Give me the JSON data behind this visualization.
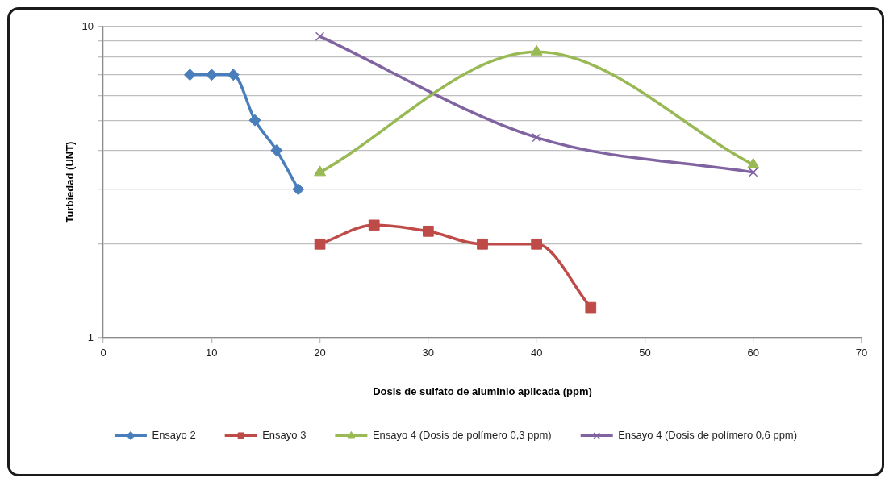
{
  "chart_data": {
    "type": "line",
    "xlabel": "Dosis de sulfato de aluminio aplicada (ppm)",
    "ylabel": "Turbiedad (UNT)",
    "xlim": [
      0,
      70
    ],
    "xticks": [
      0,
      10,
      20,
      30,
      40,
      50,
      60,
      70
    ],
    "ylim": [
      1,
      10
    ],
    "yticks": [
      1,
      {
        "value": 2,
        "label": null
      },
      {
        "value": 3,
        "label": null
      },
      {
        "value": 4,
        "label": null
      },
      {
        "value": 5,
        "label": null
      },
      {
        "value": 6,
        "label": null
      },
      {
        "value": 7,
        "label": null
      },
      {
        "value": 8,
        "label": null
      },
      {
        "value": 9,
        "label": null
      },
      10
    ],
    "log": "y",
    "grid": "y",
    "legend": "bottom",
    "line_style": "solid",
    "series": [
      {
        "name": "Ensayo 2",
        "color": "#4a7ebb",
        "marker": "diamond",
        "x": [
          8,
          10,
          12,
          14,
          16,
          18
        ],
        "values": [
          7,
          7,
          7,
          5,
          4,
          3
        ]
      },
      {
        "name": "Ensayo 3",
        "color": "#be4b48",
        "marker": "square",
        "x": [
          20,
          25,
          30,
          35,
          40,
          45
        ],
        "values": [
          2,
          2.3,
          2.2,
          2,
          2,
          1.25
        ]
      },
      {
        "name": "Ensayo 4 (Dosis de polímero 0,3 ppm)",
        "color": "#98b954",
        "marker": "triangle",
        "x": [
          20,
          40,
          60
        ],
        "values": [
          3.4,
          8.3,
          3.6
        ]
      },
      {
        "name": "Ensayo 4 (Dosis de polímero 0,6 ppm)",
        "color": "#8064a2",
        "marker": "cross",
        "x": [
          20,
          40,
          60
        ],
        "values": [
          9.3,
          4.4,
          3.4
        ]
      }
    ]
  }
}
